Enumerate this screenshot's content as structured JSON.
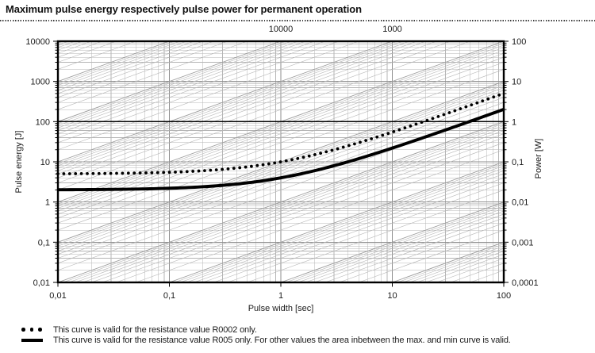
{
  "header": {
    "title": "Maximum pulse energy respectively pulse power for permanent operation"
  },
  "chart_data": {
    "type": "line",
    "title": "Maximum pulse energy respectively pulse power for permanent operation",
    "grid": "log-log with constant-power diagonal guide lines",
    "x_axis": {
      "label": "Pulse width [sec]",
      "scale": "log",
      "range": [
        0.01,
        100
      ],
      "ticks": [
        "0,01",
        "0,1",
        "1",
        "10",
        "100"
      ]
    },
    "y_axis_left": {
      "label": "Pulse energy [J]",
      "scale": "log",
      "range": [
        0.01,
        10000
      ],
      "ticks": [
        "10000",
        "1000",
        "100",
        "10",
        "1",
        "0,1",
        "0,01"
      ]
    },
    "y_axis_right": {
      "label": "Power [W]",
      "scale": "log",
      "range": [
        0.0001,
        100
      ],
      "ticks": [
        "100",
        "10",
        "1",
        "0,1",
        "0,01",
        "0,001",
        "0,0001"
      ]
    },
    "emphasized_horizontal": {
      "energy_j": 100,
      "power_w": 1
    },
    "diagonal_guides": {
      "meaning": "constant power lines, energy = power x time",
      "power_decades": [
        -4,
        6
      ],
      "top_labels": [
        {
          "label": "10000",
          "power_w": 10000
        },
        {
          "label": "1000",
          "power_w": 1000
        }
      ]
    },
    "series": [
      {
        "id": "r0002-max-curve",
        "name": "R0002 max curve",
        "style": "dotted",
        "flat_energy_j": 5,
        "asymptotic_power_w": 5,
        "formula": "E(t) = 5 + 5*t",
        "points": [
          [
            0.01,
            5.05
          ],
          [
            0.03,
            5.15
          ],
          [
            0.1,
            5.5
          ],
          [
            0.3,
            6.5
          ],
          [
            1,
            10
          ],
          [
            3,
            20
          ],
          [
            10,
            55
          ],
          [
            30,
            155
          ],
          [
            100,
            505
          ]
        ]
      },
      {
        "id": "r005-min-curve",
        "name": "R005 min curve",
        "style": "solid",
        "flat_energy_j": 2,
        "asymptotic_power_w": 2,
        "formula": "E(t) = 2 + 2*t",
        "points": [
          [
            0.01,
            2.02
          ],
          [
            0.03,
            2.06
          ],
          [
            0.1,
            2.2
          ],
          [
            0.3,
            2.6
          ],
          [
            1,
            4
          ],
          [
            3,
            8
          ],
          [
            10,
            22
          ],
          [
            30,
            62
          ],
          [
            100,
            202
          ]
        ]
      }
    ]
  },
  "legend": [
    {
      "marker": "dotted",
      "text": "This curve is valid for the resistance value R0002 only."
    },
    {
      "marker": "solid",
      "text": "This curve is valid for the resistance value R005 only. For other values the area inbetween the max. and min curve is valid."
    }
  ],
  "colors": {
    "grid_minor": "#b5b5b5",
    "grid_major": "#8e8e8e",
    "diagonal_minor": "#b6b6b6",
    "diagonal_major": "#9b9b9b",
    "frame": "#000000",
    "curve": "#000000",
    "text": "#1b1b1b"
  }
}
